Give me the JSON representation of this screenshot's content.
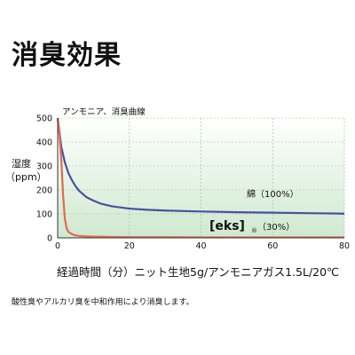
{
  "title": "消臭効果",
  "chart_subtitle": "アンモニア、消臭曲線",
  "ylabel": "湿度\n（ppm）",
  "xlabel": "経過時間（分）ニット生地5g/アンモニアガス1.5L/20℃",
  "note": "酸性臭やアルカリ臭を中和作用により消臭します。",
  "colors": {
    "cotton": "#4b4fa3",
    "eks": "#e06a50",
    "bg_top": "#ffffff",
    "bg_bottom": "#cfe9cf",
    "grid": "#8fbf8f"
  },
  "chart_data": {
    "type": "line",
    "xlim": [
      0,
      80
    ],
    "ylim": [
      0,
      500
    ],
    "x_ticks": [
      "0",
      "20",
      "40",
      "60",
      "80"
    ],
    "y_ticks": [
      "0",
      "100",
      "200",
      "300",
      "400",
      "500"
    ],
    "grid": true,
    "series": [
      {
        "name": "綿（100%）",
        "color": "#4b4fa3",
        "x": [
          0,
          0.5,
          1,
          2,
          3,
          4,
          5,
          6,
          8,
          10,
          12,
          15,
          20,
          25,
          30,
          40,
          50,
          60,
          70,
          80
        ],
        "y": [
          500,
          440,
          380,
          315,
          270,
          240,
          215,
          196,
          170,
          155,
          143,
          132,
          122,
          117,
          114,
          110,
          107,
          105,
          103,
          101
        ]
      },
      {
        "name": "[eks]®（30%）",
        "color": "#e06a50",
        "x": [
          0,
          0.5,
          1,
          1.5,
          2,
          2.5,
          3,
          4,
          5,
          6,
          8,
          10,
          15,
          20,
          30,
          40,
          60,
          80
        ],
        "y": [
          500,
          430,
          330,
          180,
          80,
          40,
          25,
          15,
          10,
          8,
          6,
          5,
          4,
          3,
          3,
          2,
          2,
          2
        ]
      }
    ],
    "labels": [
      {
        "series": 0,
        "text": "綿（100%）"
      },
      {
        "series": 1,
        "brand": "[eks]",
        "mark": "®",
        "text": "（30%）"
      }
    ]
  }
}
